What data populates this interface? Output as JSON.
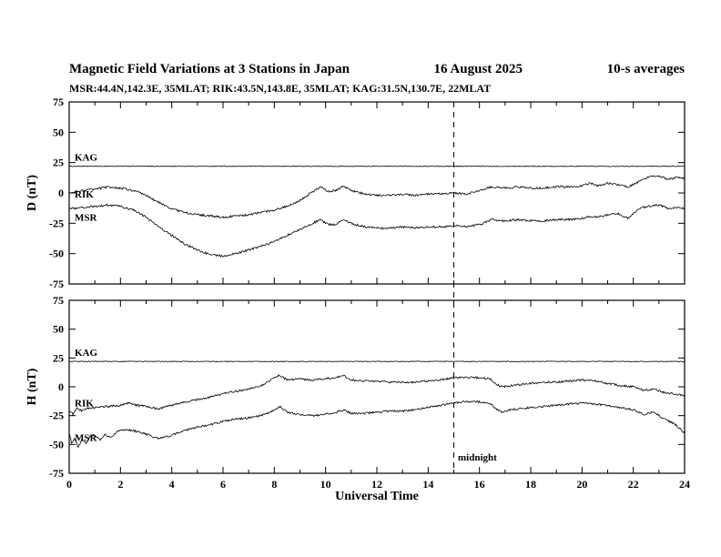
{
  "title": {
    "main": "Magnetic Field Variations at 3 Stations in Japan",
    "date": "16 August  2025",
    "averaging": "10-s averages"
  },
  "subtitle": "MSR:44.4N,142.3E, 35MLAT;  RIK:43.5N,143.8E, 35MLAT;  KAG:31.5N,130.7E, 22MLAT",
  "x_axis": {
    "label": "Universal Time",
    "min": 0,
    "max": 24,
    "major_tick_interval": 2,
    "minor_tick_interval": 1,
    "tick_labels": [
      "0",
      "2",
      "4",
      "6",
      "8",
      "10",
      "12",
      "14",
      "16",
      "18",
      "20",
      "22",
      "24"
    ]
  },
  "annotations": {
    "midnight": {
      "x": 15,
      "label": "midnight",
      "style": "dashed-vertical"
    }
  },
  "chart_data": [
    {
      "type": "line",
      "ylabel": "D (nT)",
      "ylim": [
        -75,
        75
      ],
      "yticks": [
        75,
        50,
        25,
        0,
        -25,
        -50,
        -75
      ],
      "series": [
        {
          "name": "KAG",
          "x": [
            0,
            24
          ],
          "values": [
            22,
            22
          ]
        },
        {
          "name": "RIK",
          "x": [
            0,
            0.5,
            1,
            1.5,
            2,
            2.5,
            3,
            3.5,
            4,
            4.5,
            5,
            5.5,
            6,
            6.5,
            7,
            7.5,
            8,
            8.5,
            9,
            9.5,
            9.8,
            10.1,
            10.4,
            10.7,
            11,
            11.5,
            12,
            12.5,
            13,
            13.5,
            14,
            14.5,
            15,
            15.5,
            16,
            16.5,
            17,
            17.5,
            18,
            18.5,
            19,
            19.5,
            20,
            20.3,
            20.6,
            21,
            21.4,
            21.8,
            22.2,
            22.6,
            23,
            23.4,
            23.7,
            24
          ],
          "values": [
            0,
            2,
            3,
            5,
            4,
            2,
            -2,
            -8,
            -13,
            -16,
            -18,
            -19,
            -20,
            -19,
            -18,
            -16,
            -14,
            -11,
            -6,
            1,
            5,
            1,
            2,
            6,
            2,
            -1,
            -2,
            -2,
            -1,
            -2,
            -1,
            -1,
            0,
            -1,
            2,
            5,
            4,
            5,
            4,
            4,
            5,
            5,
            6,
            8,
            6,
            8,
            7,
            5,
            9,
            13,
            14,
            11,
            13,
            12
          ]
        },
        {
          "name": "MSR",
          "x": [
            0,
            0.5,
            1,
            1.5,
            2,
            2.5,
            3,
            3.5,
            4,
            4.5,
            5,
            5.5,
            6,
            6.5,
            7,
            7.5,
            8,
            8.5,
            9,
            9.5,
            9.8,
            10.1,
            10.4,
            10.7,
            11,
            11.5,
            12,
            12.5,
            13,
            13.5,
            14,
            14.5,
            15,
            15.5,
            16,
            16.5,
            17,
            17.5,
            18,
            18.5,
            19,
            19.5,
            20,
            20.3,
            20.6,
            21,
            21.4,
            21.8,
            22.2,
            22.6,
            23,
            23.4,
            23.7,
            24
          ],
          "values": [
            -13,
            -12,
            -11,
            -10,
            -11,
            -14,
            -20,
            -28,
            -35,
            -42,
            -47,
            -51,
            -52,
            -50,
            -47,
            -44,
            -40,
            -35,
            -30,
            -25,
            -22,
            -26,
            -26,
            -22,
            -25,
            -28,
            -29,
            -29,
            -28,
            -29,
            -28,
            -28,
            -27,
            -28,
            -26,
            -22,
            -23,
            -22,
            -23,
            -23,
            -22,
            -22,
            -21,
            -19,
            -20,
            -18,
            -17,
            -21,
            -13,
            -11,
            -10,
            -13,
            -12,
            -13
          ]
        }
      ]
    },
    {
      "type": "line",
      "ylabel": "H (nT)",
      "ylim": [
        -75,
        75
      ],
      "yticks": [
        75,
        50,
        25,
        0,
        -25,
        -50,
        -75
      ],
      "series": [
        {
          "name": "KAG",
          "x": [
            0,
            24
          ],
          "values": [
            22,
            22
          ]
        },
        {
          "name": "RIK",
          "x": [
            0,
            0.15,
            0.3,
            0.5,
            0.8,
            1,
            1.5,
            2,
            2.3,
            2.6,
            3,
            3.5,
            4,
            4.5,
            5,
            5.5,
            6,
            6.5,
            7,
            7.5,
            8,
            8.2,
            8.5,
            9,
            9.5,
            10,
            10.4,
            10.7,
            11,
            11.5,
            12,
            12.5,
            13,
            13.5,
            14,
            14.5,
            15,
            15.5,
            16,
            16.4,
            16.7,
            16.9,
            17.2,
            17.6,
            18,
            18.5,
            19,
            19.5,
            20,
            20.5,
            21,
            21.5,
            22,
            22.4,
            22.8,
            23.2,
            23.6,
            24
          ],
          "values": [
            -20,
            -24,
            -19,
            -21,
            -18,
            -18,
            -17,
            -16,
            -14,
            -16,
            -17,
            -19,
            -16,
            -13,
            -11,
            -9,
            -6,
            -4,
            -2,
            1,
            8,
            10,
            6,
            7,
            6,
            7,
            8,
            10,
            6,
            5,
            5,
            4,
            4,
            4,
            5,
            6,
            8,
            8,
            8,
            7,
            2,
            0,
            1,
            2,
            3,
            4,
            4,
            5,
            6,
            5,
            3,
            1,
            0,
            -3,
            -2,
            -5,
            -6,
            -8
          ]
        },
        {
          "name": "MSR",
          "x": [
            0,
            0.1,
            0.2,
            0.35,
            0.5,
            0.65,
            0.8,
            1,
            1.2,
            1.4,
            1.6,
            2,
            2.5,
            3,
            3.5,
            4,
            4.5,
            5,
            5.5,
            6,
            6.5,
            7,
            7.5,
            8,
            8.2,
            8.5,
            9,
            9.5,
            10,
            10.4,
            10.7,
            11,
            11.5,
            12,
            12.5,
            13,
            13.5,
            14,
            14.5,
            15,
            15.5,
            16,
            16.4,
            16.7,
            16.9,
            17.2,
            17.6,
            18,
            18.5,
            19,
            19.5,
            20,
            20.5,
            21,
            21.5,
            22,
            22.4,
            22.8,
            23.2,
            23.6,
            24
          ],
          "values": [
            -40,
            -50,
            -44,
            -53,
            -45,
            -50,
            -43,
            -42,
            -46,
            -41,
            -44,
            -37,
            -38,
            -41,
            -45,
            -42,
            -38,
            -35,
            -33,
            -30,
            -28,
            -27,
            -25,
            -20,
            -17,
            -22,
            -24,
            -25,
            -24,
            -22,
            -20,
            -23,
            -23,
            -22,
            -21,
            -21,
            -20,
            -18,
            -16,
            -14,
            -13,
            -13,
            -14,
            -20,
            -22,
            -20,
            -19,
            -18,
            -17,
            -16,
            -15,
            -14,
            -15,
            -16,
            -18,
            -20,
            -24,
            -22,
            -28,
            -32,
            -40
          ]
        }
      ]
    }
  ]
}
